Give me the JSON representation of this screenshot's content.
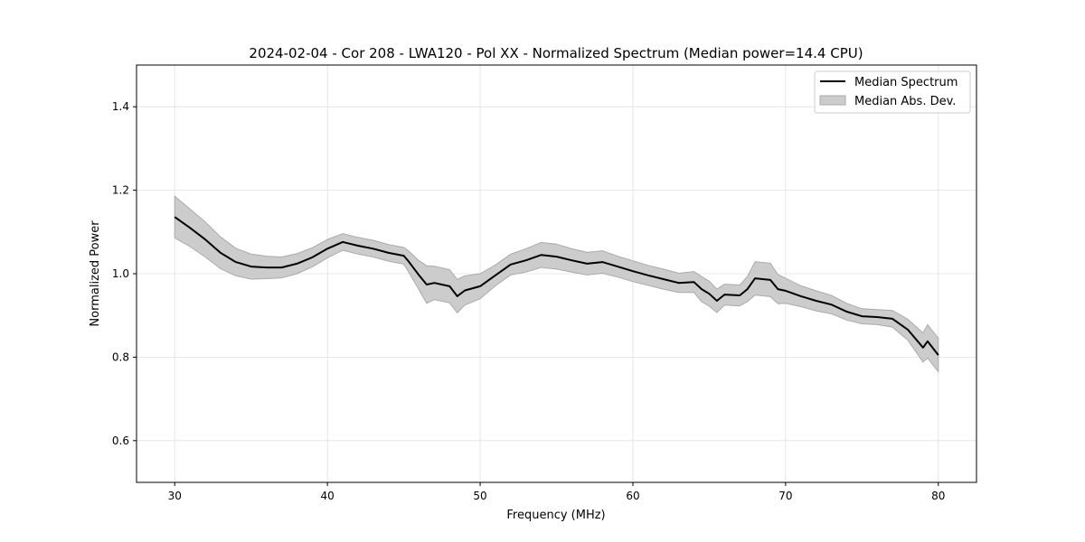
{
  "chart_data": {
    "type": "line",
    "title": "2024-02-04 - Cor 208 - LWA120 - Pol XX - Normalized Spectrum (Median power=14.4 CPU)",
    "xlabel": "Frequency (MHz)",
    "ylabel": "Normalized Power",
    "xlim": [
      27.5,
      82.5
    ],
    "ylim": [
      0.5,
      1.5
    ],
    "xticks": [
      30,
      40,
      50,
      60,
      70,
      80
    ],
    "xtick_labels": [
      "30",
      "40",
      "50",
      "60",
      "70",
      "80"
    ],
    "yticks": [
      0.6,
      0.8,
      1.0,
      1.2,
      1.4
    ],
    "ytick_labels": [
      "0.6",
      "0.8",
      "1.0",
      "1.2",
      "1.4"
    ],
    "grid": true,
    "legend_position": "top-right",
    "legend": [
      "Median Spectrum",
      "Median Abs. Dev."
    ],
    "colors": {
      "line": "#000000",
      "band": "#cccccc",
      "band_edge": "#aaaaaa",
      "grid": "#e0e0e0"
    },
    "series": [
      {
        "name": "Median Spectrum",
        "x": [
          30,
          31,
          32,
          33,
          34,
          35,
          36,
          37,
          38,
          39,
          40,
          41,
          42,
          43,
          44,
          45,
          45.3,
          46,
          46.5,
          47,
          48,
          48.5,
          49,
          50,
          51,
          52,
          53,
          54,
          55,
          56,
          57,
          58,
          59,
          60,
          61,
          62,
          63,
          64,
          64.5,
          65,
          65.5,
          66,
          67,
          67.5,
          68,
          69,
          69.5,
          70,
          71,
          72,
          73,
          74,
          75,
          76,
          77,
          78,
          79,
          79.3,
          80
        ],
        "y": [
          1.136,
          1.11,
          1.082,
          1.05,
          1.028,
          1.017,
          1.015,
          1.015,
          1.024,
          1.039,
          1.06,
          1.076,
          1.067,
          1.06,
          1.05,
          1.043,
          1.03,
          0.996,
          0.974,
          0.978,
          0.97,
          0.946,
          0.96,
          0.97,
          0.996,
          1.022,
          1.032,
          1.045,
          1.041,
          1.032,
          1.024,
          1.028,
          1.017,
          1.006,
          0.996,
          0.987,
          0.978,
          0.98,
          0.963,
          0.952,
          0.935,
          0.95,
          0.948,
          0.963,
          0.989,
          0.985,
          0.963,
          0.959,
          0.946,
          0.935,
          0.926,
          0.909,
          0.898,
          0.896,
          0.892,
          0.866,
          0.823,
          0.838,
          0.805
        ],
        "mad": [
          0.05,
          0.045,
          0.042,
          0.038,
          0.033,
          0.03,
          0.027,
          0.025,
          0.024,
          0.023,
          0.022,
          0.02,
          0.02,
          0.02,
          0.02,
          0.02,
          0.025,
          0.035,
          0.045,
          0.04,
          0.04,
          0.04,
          0.035,
          0.03,
          0.025,
          0.025,
          0.028,
          0.03,
          0.03,
          0.028,
          0.027,
          0.027,
          0.025,
          0.025,
          0.024,
          0.024,
          0.023,
          0.025,
          0.03,
          0.03,
          0.028,
          0.025,
          0.025,
          0.03,
          0.04,
          0.04,
          0.035,
          0.03,
          0.025,
          0.024,
          0.022,
          0.02,
          0.018,
          0.018,
          0.02,
          0.025,
          0.035,
          0.04,
          0.04
        ]
      }
    ]
  }
}
